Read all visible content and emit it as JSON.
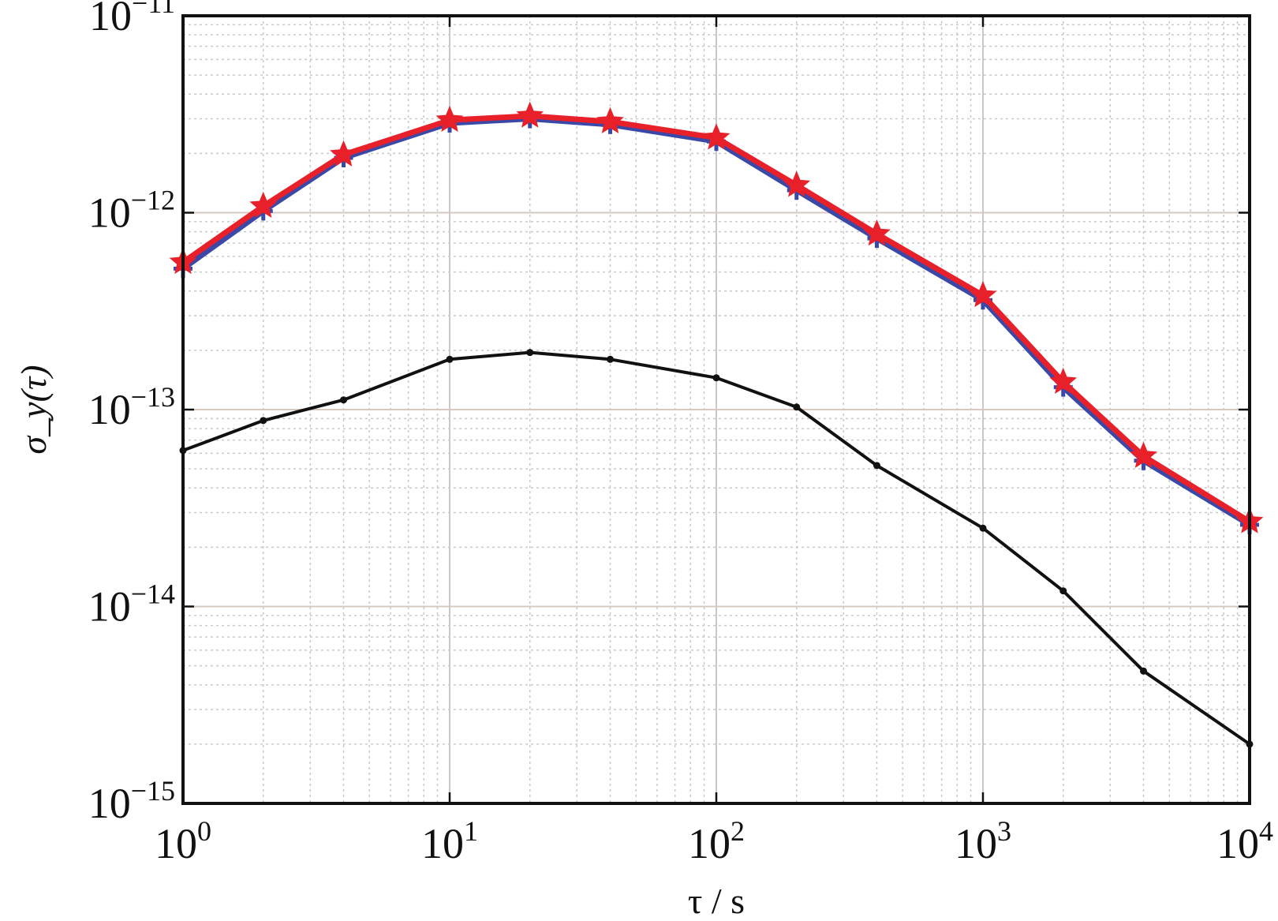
{
  "chart_data": {
    "type": "line",
    "title": "",
    "xlabel": "τ / s",
    "ylabel": "σ_y(τ)",
    "xscale": "log",
    "yscale": "log",
    "xlim": [
      1,
      10000
    ],
    "ylim": [
      1e-15,
      1e-11
    ],
    "grid": true,
    "legend": "none",
    "x_ticks": [
      {
        "value": 1,
        "base": "10",
        "exp": "0"
      },
      {
        "value": 10,
        "base": "10",
        "exp": "1"
      },
      {
        "value": 100,
        "base": "10",
        "exp": "2"
      },
      {
        "value": 1000,
        "base": "10",
        "exp": "3"
      },
      {
        "value": 10000,
        "base": "10",
        "exp": "4"
      }
    ],
    "y_ticks": [
      {
        "value": 1e-15,
        "base": "10",
        "exp": "−15"
      },
      {
        "value": 1e-14,
        "base": "10",
        "exp": "−14"
      },
      {
        "value": 1e-13,
        "base": "10",
        "exp": "−13"
      },
      {
        "value": 1e-12,
        "base": "10",
        "exp": "−12"
      },
      {
        "value": 1e-11,
        "base": "10",
        "exp": "−11"
      }
    ],
    "x": [
      1,
      2,
      4,
      10,
      20,
      40,
      100,
      200,
      400,
      1000,
      2000,
      4000,
      10000
    ],
    "series": [
      {
        "color": "#3a49a8",
        "marker": "plus",
        "values": [
          5.2e-13,
          1.02e-12,
          1.9e-12,
          2.85e-12,
          3e-12,
          2.8e-12,
          2.3e-12,
          1.3e-12,
          7.4e-13,
          3.6e-13,
          1.3e-13,
          5.5e-14,
          2.6e-14
        ]
      },
      {
        "color": "#e8202a",
        "marker": "star",
        "values": [
          5.6e-13,
          1.08e-12,
          1.97e-12,
          2.95e-12,
          3.1e-12,
          2.9e-12,
          2.4e-12,
          1.38e-12,
          7.8e-13,
          3.8e-13,
          1.38e-13,
          5.8e-14,
          2.7e-14
        ]
      },
      {
        "color": "#111111",
        "marker": "dot",
        "values": [
          6.2e-14,
          8.8e-14,
          1.12e-13,
          1.8e-13,
          1.95e-13,
          1.8e-13,
          1.45e-13,
          1.03e-13,
          5.2e-14,
          2.5e-14,
          1.2e-14,
          4.7e-15,
          2e-15
        ]
      }
    ]
  }
}
